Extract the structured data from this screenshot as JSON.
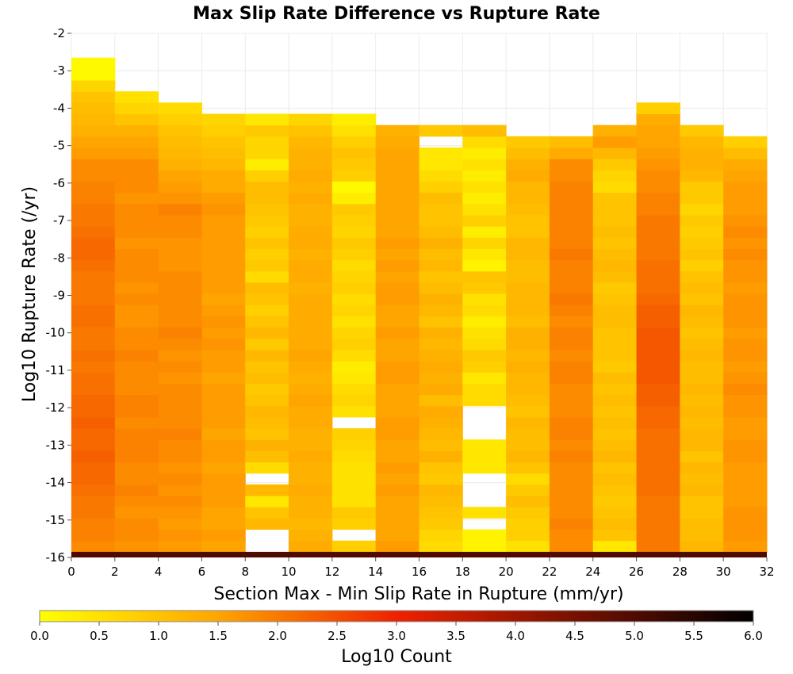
{
  "chart_data": {
    "type": "heatmap",
    "title": "Max Slip Rate Difference vs Rupture Rate",
    "xlabel": "Section Max - Min Slip Rate in Rupture (mm/yr)",
    "ylabel": "Log10 Rupture Rate (/yr)",
    "xlim": [
      0,
      32
    ],
    "ylim": [
      -16,
      -2
    ],
    "x_ticks": [
      "0",
      "2",
      "4",
      "6",
      "8",
      "10",
      "12",
      "14",
      "16",
      "18",
      "20",
      "22",
      "24",
      "26",
      "28",
      "30",
      "32"
    ],
    "y_ticks": [
      "-16",
      "-15",
      "-14",
      "-13",
      "-12",
      "-11",
      "-10",
      "-9",
      "-8",
      "-7",
      "-6",
      "-5",
      "-4",
      "-3",
      "-2"
    ],
    "grid": true,
    "colorbar": {
      "label": "Log10 Count",
      "range": [
        0,
        6
      ],
      "ticks": [
        "0.0",
        "0.5",
        "1.0",
        "1.5",
        "2.0",
        "2.5",
        "3.0",
        "3.5",
        "4.0",
        "4.5",
        "5.0",
        "5.5",
        "6.0"
      ],
      "colors": [
        "#ffff00",
        "#ffa500",
        "#ee2200",
        "#000000"
      ]
    },
    "x_bin_width": 2,
    "y_bin_height": 0.3,
    "y_bin_start": -16,
    "bottom_row": {
      "y_range": [
        -16,
        -15.85
      ],
      "value": 5.0
    },
    "columns": [
      {
        "x_start": 0,
        "values": [
          1.8,
          1.9,
          1.9,
          2.0,
          2.0,
          2.1,
          2.2,
          2.2,
          2.3,
          2.2,
          2.2,
          2.3,
          2.2,
          2.2,
          2.1,
          2.1,
          2.0,
          2.1,
          2.0,
          2.0,
          2.1,
          2.1,
          2.0,
          2.0,
          2.0,
          2.1,
          2.2,
          2.2,
          2.1,
          2.0,
          2.0,
          1.9,
          1.9,
          1.8,
          1.8,
          1.6,
          1.5,
          1.3,
          1.2,
          1.1,
          1.0,
          0.7,
          0.1,
          0.1
        ]
      },
      {
        "x_start": 2,
        "values": [
          1.7,
          1.8,
          1.8,
          1.7,
          1.8,
          1.9,
          1.8,
          1.8,
          1.9,
          1.9,
          1.9,
          1.8,
          1.9,
          1.9,
          1.8,
          1.8,
          1.8,
          1.9,
          1.8,
          1.8,
          1.7,
          1.7,
          1.8,
          1.7,
          1.8,
          1.8,
          1.8,
          1.7,
          1.8,
          1.8,
          1.8,
          1.7,
          1.8,
          1.8,
          1.8,
          1.6,
          1.5,
          1.3,
          1.0,
          0.7,
          0.5
        ]
      },
      {
        "x_start": 4,
        "values": [
          1.6,
          1.7,
          1.6,
          1.7,
          1.8,
          1.7,
          1.8,
          1.7,
          1.8,
          1.8,
          1.9,
          1.8,
          1.8,
          1.8,
          1.8,
          1.7,
          1.8,
          1.7,
          1.8,
          1.9,
          1.8,
          1.8,
          1.8,
          1.8,
          1.8,
          1.7,
          1.7,
          1.7,
          1.8,
          1.8,
          1.9,
          1.7,
          1.6,
          1.5,
          1.3,
          1.2,
          1.1,
          1.0,
          0.8,
          0.6
        ]
      },
      {
        "x_start": 6,
        "values": [
          1.5,
          1.6,
          1.5,
          1.5,
          1.6,
          1.6,
          1.6,
          1.5,
          1.6,
          1.6,
          1.5,
          1.6,
          1.6,
          1.6,
          1.6,
          1.5,
          1.6,
          1.6,
          1.7,
          1.6,
          1.7,
          1.6,
          1.5,
          1.6,
          1.6,
          1.6,
          1.6,
          1.6,
          1.6,
          1.6,
          1.7,
          1.6,
          1.4,
          1.4,
          1.2,
          1.1,
          1.0,
          0.8,
          0.7
        ]
      },
      {
        "x_start": 8,
        "values": [
          null,
          null,
          1.2,
          1.0,
          0.4,
          1.2,
          null,
          0.6,
          1.1,
          1.3,
          1.0,
          1.1,
          1.2,
          1.0,
          0.9,
          1.1,
          1.0,
          1.2,
          0.9,
          1.2,
          1.0,
          0.8,
          1.0,
          1.1,
          0.6,
          0.9,
          0.8,
          1.0,
          0.8,
          0.9,
          1.0,
          1.1,
          1.1,
          0.8,
          0.3,
          0.7,
          0.7,
          0.9,
          0.4
        ]
      },
      {
        "x_start": 10,
        "values": [
          1.4,
          1.3,
          1.2,
          1.3,
          1.3,
          1.4,
          1.3,
          1.3,
          1.4,
          1.3,
          1.3,
          1.4,
          1.4,
          1.5,
          1.4,
          1.3,
          1.4,
          1.5,
          1.4,
          1.4,
          1.4,
          1.4,
          1.4,
          1.3,
          1.4,
          1.4,
          1.3,
          1.4,
          1.4,
          1.3,
          1.3,
          1.4,
          1.3,
          1.4,
          1.3,
          1.3,
          1.2,
          1.0,
          0.7
        ]
      },
      {
        "x_start": 12,
        "values": [
          0.8,
          null,
          0.8,
          0.9,
          0.5,
          0.5,
          0.5,
          0.5,
          0.6,
          0.7,
          0.8,
          null,
          0.5,
          0.7,
          0.6,
          0.4,
          0.3,
          0.6,
          0.8,
          0.7,
          0.5,
          0.7,
          0.6,
          0.8,
          0.7,
          0.6,
          0.8,
          0.9,
          0.7,
          0.8,
          0.9,
          0.3,
          0.1,
          0.8,
          0.9,
          1.0,
          0.8,
          0.5,
          0.3
        ]
      },
      {
        "x_start": 14,
        "values": [
          1.6,
          1.5,
          1.5,
          1.5,
          1.5,
          1.6,
          1.5,
          1.6,
          1.5,
          1.5,
          1.6,
          1.6,
          1.5,
          1.5,
          1.5,
          1.6,
          1.6,
          1.5,
          1.5,
          1.6,
          1.5,
          1.5,
          1.6,
          1.6,
          1.5,
          1.6,
          1.5,
          1.6,
          1.5,
          1.5,
          1.5,
          1.5,
          1.5,
          1.5,
          1.5,
          1.5,
          1.4,
          1.3,
          null
        ]
      },
      {
        "x_start": 16,
        "values": [
          0.6,
          0.7,
          0.9,
          1.0,
          1.1,
          1.2,
          0.9,
          1.0,
          1.3,
          1.1,
          1.2,
          1.3,
          1.4,
          1.1,
          1.4,
          1.3,
          1.4,
          1.3,
          1.2,
          1.3,
          1.0,
          1.2,
          1.3,
          1.1,
          1.0,
          1.2,
          1.1,
          1.3,
          1.1,
          1.0,
          1.0,
          1.1,
          0.8,
          0.6,
          0.4,
          0.4,
          null,
          0.9,
          null
        ]
      },
      {
        "x_start": 18,
        "values": [
          0.2,
          0.2,
          null,
          0.5,
          null,
          null,
          null,
          0.4,
          0.4,
          0.4,
          null,
          null,
          null,
          0.6,
          0.6,
          0.4,
          0.8,
          0.9,
          0.6,
          0.5,
          0.3,
          0.6,
          0.5,
          0.9,
          1.0,
          0.2,
          0.4,
          0.7,
          0.3,
          0.8,
          0.5,
          0.3,
          0.5,
          0.3,
          0.5,
          0.3,
          0.6,
          1.1
        ]
      },
      {
        "x_start": 20,
        "values": [
          0.5,
          0.8,
          0.8,
          0.9,
          1.1,
          0.9,
          0.6,
          1.0,
          1.2,
          1.1,
          1.1,
          1.2,
          1.0,
          1.1,
          1.2,
          1.2,
          1.3,
          1.2,
          1.3,
          1.3,
          1.1,
          1.2,
          1.2,
          1.2,
          1.1,
          1.1,
          1.2,
          1.2,
          1.0,
          1.0,
          1.1,
          1.2,
          1.2,
          1.4,
          1.3,
          1.1,
          0.9
        ]
      },
      {
        "x_start": 22,
        "values": [
          1.8,
          1.8,
          1.9,
          1.8,
          1.8,
          1.8,
          1.8,
          1.8,
          1.9,
          1.8,
          1.9,
          1.9,
          1.8,
          1.8,
          1.8,
          1.9,
          1.9,
          1.8,
          1.9,
          1.9,
          1.8,
          1.9,
          2.0,
          1.9,
          1.9,
          1.9,
          2.0,
          1.9,
          1.9,
          1.9,
          1.9,
          1.9,
          1.9,
          1.8,
          1.8,
          1.4,
          1.1
        ]
      },
      {
        "x_start": 24,
        "values": [
          0.4,
          1.0,
          1.1,
          1.0,
          0.9,
          1.0,
          1.1,
          1.0,
          1.2,
          1.1,
          1.0,
          1.1,
          1.0,
          1.1,
          1.0,
          1.1,
          0.9,
          1.0,
          1.0,
          1.0,
          1.1,
          1.1,
          1.0,
          0.9,
          1.1,
          1.2,
          1.1,
          1.0,
          1.1,
          1.0,
          1.0,
          1.0,
          0.6,
          0.7,
          0.9,
          1.2,
          1.6,
          1.3
        ]
      },
      {
        "x_start": 26,
        "values": [
          2.0,
          2.0,
          2.0,
          2.0,
          2.0,
          2.1,
          2.1,
          2.1,
          2.1,
          2.1,
          2.1,
          2.2,
          2.2,
          2.3,
          2.3,
          2.4,
          2.4,
          2.4,
          2.4,
          2.4,
          2.3,
          2.3,
          2.2,
          2.1,
          2.1,
          2.1,
          2.0,
          2.0,
          2.0,
          2.0,
          1.9,
          1.9,
          1.8,
          1.8,
          1.7,
          1.6,
          1.5,
          1.5,
          1.4,
          0.8
        ]
      },
      {
        "x_start": 28,
        "values": [
          1.2,
          1.1,
          1.1,
          1.0,
          1.0,
          1.2,
          1.1,
          1.2,
          1.0,
          1.2,
          1.2,
          1.1,
          1.2,
          1.1,
          1.2,
          1.1,
          1.1,
          1.2,
          1.1,
          1.0,
          1.1,
          1.2,
          1.0,
          1.1,
          1.0,
          0.8,
          1.0,
          0.9,
          0.8,
          0.9,
          0.7,
          0.9,
          0.9,
          1.2,
          1.3,
          1.3,
          1.2,
          0.9
        ]
      },
      {
        "x_start": 30,
        "values": [
          1.6,
          1.7,
          1.7,
          1.7,
          1.6,
          1.6,
          1.6,
          1.6,
          1.7,
          1.7,
          1.6,
          1.6,
          1.7,
          1.7,
          1.8,
          1.7,
          1.6,
          1.7,
          1.7,
          1.6,
          1.7,
          1.7,
          1.7,
          1.6,
          1.7,
          1.7,
          1.8,
          1.7,
          1.8,
          1.7,
          1.6,
          1.6,
          1.6,
          1.5,
          1.4,
          1.1,
          0.8
        ]
      }
    ]
  }
}
